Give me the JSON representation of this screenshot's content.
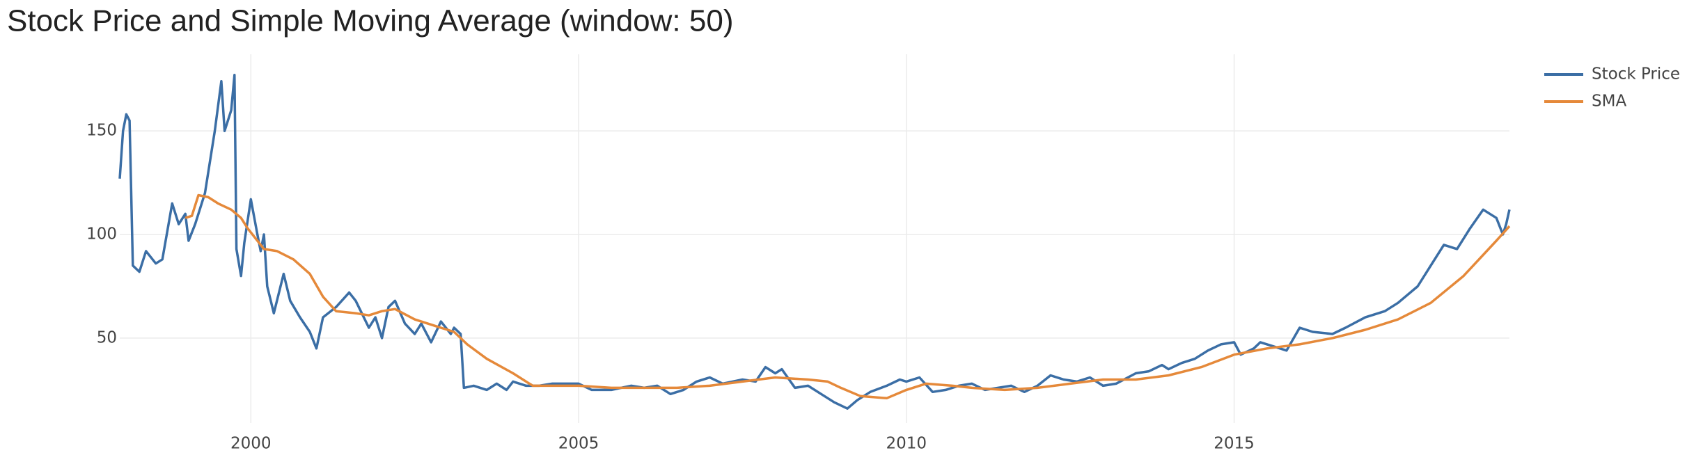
{
  "chart_data": {
    "type": "line",
    "title": "Stock Price and Simple Moving Average (window: 50)",
    "xlim": [
      1998.0,
      2019.2
    ],
    "xticks": [
      2000,
      2005,
      2010,
      2015
    ],
    "ylim": [
      9,
      187
    ],
    "yticks": [
      50,
      100,
      150
    ],
    "grid": true,
    "legend": "top-right",
    "series": [
      {
        "name": "Stock Price",
        "color": "#3b6ea5",
        "x": [
          1998.0,
          1998.05,
          1998.1,
          1998.15,
          1998.2,
          1998.3,
          1998.4,
          1998.55,
          1998.65,
          1998.8,
          1998.9,
          1999.0,
          1999.05,
          1999.15,
          1999.3,
          1999.45,
          1999.55,
          1999.6,
          1999.7,
          1999.75,
          1999.78,
          1999.85,
          1999.9,
          2000.0,
          2000.1,
          2000.15,
          2000.2,
          2000.25,
          2000.35,
          2000.5,
          2000.6,
          2000.75,
          2000.9,
          2001.0,
          2001.1,
          2001.3,
          2001.5,
          2001.6,
          2001.8,
          2001.9,
          2002.0,
          2002.1,
          2002.2,
          2002.35,
          2002.5,
          2002.6,
          2002.75,
          2002.9,
          2003.05,
          2003.1,
          2003.2,
          2003.25,
          2003.4,
          2003.6,
          2003.75,
          2003.9,
          2004.0,
          2004.2,
          2004.4,
          2004.6,
          2004.8,
          2005.0,
          2005.2,
          2005.5,
          2005.8,
          2006.0,
          2006.2,
          2006.4,
          2006.6,
          2006.8,
          2007.0,
          2007.2,
          2007.5,
          2007.7,
          2007.85,
          2008.0,
          2008.1,
          2008.3,
          2008.5,
          2008.7,
          2008.9,
          2009.1,
          2009.25,
          2009.45,
          2009.7,
          2009.9,
          2010.0,
          2010.2,
          2010.4,
          2010.6,
          2010.8,
          2011.0,
          2011.2,
          2011.4,
          2011.6,
          2011.8,
          2012.0,
          2012.2,
          2012.4,
          2012.6,
          2012.8,
          2013.0,
          2013.2,
          2013.5,
          2013.7,
          2013.9,
          2014.0,
          2014.2,
          2014.4,
          2014.6,
          2014.8,
          2015.0,
          2015.1,
          2015.3,
          2015.4,
          2015.6,
          2015.8,
          2016.0,
          2016.2,
          2016.5,
          2016.7,
          2017.0,
          2017.3,
          2017.5,
          2017.8,
          2018.0,
          2018.2,
          2018.4,
          2018.6,
          2018.8,
          2018.9,
          2019.0,
          2019.1,
          2019.15,
          2019.2
        ],
        "values": [
          127,
          150,
          158,
          155,
          85,
          82,
          92,
          86,
          88,
          115,
          105,
          110,
          97,
          105,
          120,
          150,
          174,
          150,
          160,
          177,
          93,
          80,
          96,
          117,
          100,
          92,
          100,
          75,
          62,
          81,
          68,
          60,
          53,
          45,
          60,
          65,
          72,
          68,
          55,
          60,
          50,
          65,
          68,
          57,
          52,
          57,
          48,
          58,
          52,
          55,
          52,
          26,
          27,
          25,
          28,
          25,
          29,
          27,
          27,
          28,
          28,
          28,
          25,
          25,
          27,
          26,
          27,
          23,
          25,
          29,
          31,
          28,
          30,
          29,
          36,
          33,
          35,
          26,
          27,
          23,
          19,
          16,
          20,
          24,
          27,
          30,
          29,
          31,
          24,
          25,
          27,
          28,
          25,
          26,
          27,
          24,
          27,
          32,
          30,
          29,
          31,
          27,
          28,
          33,
          34,
          37,
          35,
          38,
          40,
          44,
          47,
          48,
          42,
          45,
          48,
          46,
          44,
          55,
          53,
          52,
          55,
          60,
          63,
          67,
          75,
          85,
          95,
          93,
          103,
          112,
          110,
          108,
          100,
          105,
          112
        ]
      },
      {
        "name": "SMA",
        "color": "#e5893a",
        "x": [
          1999.0,
          1999.1,
          1999.2,
          1999.35,
          1999.5,
          1999.7,
          1999.85,
          1999.95,
          2000.1,
          2000.2,
          2000.4,
          2000.65,
          2000.9,
          2001.1,
          2001.3,
          2001.6,
          2001.8,
          2002.0,
          2002.2,
          2002.5,
          2002.8,
          2003.1,
          2003.3,
          2003.6,
          2004.0,
          2004.3,
          2004.6,
          2005.0,
          2005.5,
          2006.0,
          2006.5,
          2007.0,
          2007.5,
          2008.0,
          2008.5,
          2008.8,
          2009.0,
          2009.3,
          2009.7,
          2010.0,
          2010.3,
          2010.7,
          2011.0,
          2011.5,
          2012.0,
          2012.5,
          2013.0,
          2013.5,
          2014.0,
          2014.5,
          2015.0,
          2015.5,
          2016.0,
          2016.5,
          2017.0,
          2017.5,
          2018.0,
          2018.5,
          2019.0,
          2019.2
        ],
        "values": [
          108,
          109,
          119,
          118,
          115,
          112,
          108,
          103,
          97,
          93,
          92,
          88,
          81,
          70,
          63,
          62,
          61,
          63,
          64,
          59,
          56,
          53,
          47,
          40,
          33,
          27,
          27,
          27,
          26,
          26,
          26,
          27,
          29,
          31,
          30,
          29,
          26,
          22,
          21,
          25,
          28,
          27,
          26,
          25,
          26,
          28,
          30,
          30,
          32,
          36,
          42,
          45,
          47,
          50,
          54,
          59,
          67,
          80,
          97,
          104
        ]
      }
    ]
  }
}
